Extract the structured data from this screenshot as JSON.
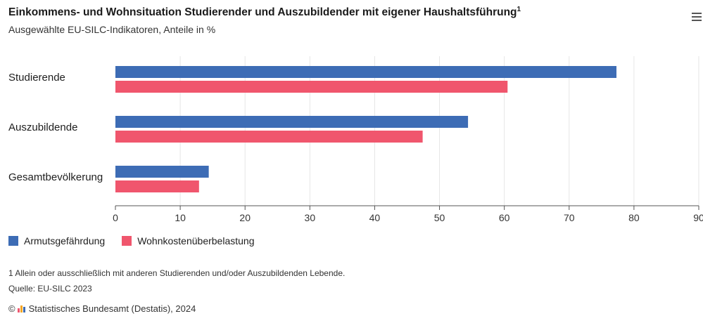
{
  "header": {
    "title": "Einkommens- und Wohnsituation Studierender und Auszubildender mit eigener Haushaltsführung",
    "title_footnote_mark": "1",
    "subtitle": "Ausgewählte EU-SILC-Indikatoren, Anteile in %",
    "menu_icon": "hamburger-menu-icon"
  },
  "chart_data": {
    "type": "bar",
    "orientation": "horizontal",
    "categories": [
      "Studierende",
      "Auszubildende",
      "Gesamtbevölkerung"
    ],
    "series": [
      {
        "name": "Armutsgefährdung",
        "color": "#3d6cb5",
        "values": [
          77.3,
          54.4,
          14.4
        ]
      },
      {
        "name": "Wohnkostenüberbelastung",
        "color": "#f0566d",
        "values": [
          60.5,
          47.4,
          12.9
        ]
      }
    ],
    "xlim": [
      0,
      90
    ],
    "xticks": [
      "0",
      "10",
      "20",
      "30",
      "40",
      "50",
      "60",
      "70",
      "80",
      "90"
    ],
    "grid": true,
    "legend_position": "bottom-left"
  },
  "footer": {
    "footnote": "1 Allein oder ausschließlich mit anderen Studierenden und/oder Auszubildenden Lebende.",
    "source": "Quelle: EU-SILC 2023",
    "copyright_symbol": "©",
    "credits": "Statistisches Bundesamt (Destatis), 2024",
    "logo_colors": [
      "#f0566d",
      "#f5a623",
      "#3d6cb5"
    ]
  }
}
